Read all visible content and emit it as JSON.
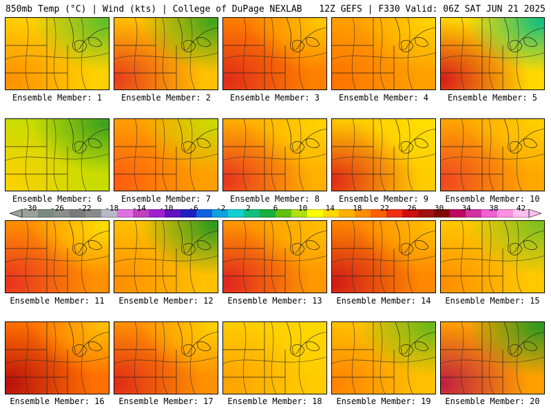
{
  "header": {
    "left": "850mb Temp (°C) | Wind (kts) | College of DuPage NEXLAB",
    "right": "12Z GEFS | F330 Valid: 06Z SAT JUN 21 2025"
  },
  "panel_label_prefix": "Ensemble Member: ",
  "members": [
    {
      "label": "Ensemble Member: 1",
      "base": "#ffd000",
      "hot_bl": "#ff8c00",
      "cool_tr": "#5cbf2a"
    },
    {
      "label": "Ensemble Member: 2",
      "base": "#ffc000",
      "hot_bl": "#e83a1c",
      "cool_tr": "#3ca51c"
    },
    {
      "label": "Ensemble Member: 3",
      "base": "#ff8000",
      "hot_bl": "#e02818",
      "cool_tr": "#ffc800"
    },
    {
      "label": "Ensemble Member: 4",
      "base": "#ffa000",
      "hot_bl": "#ff7000",
      "cool_tr": "#ffd400"
    },
    {
      "label": "Ensemble Member: 5",
      "base": "#ffd800",
      "hot_bl": "#d81818",
      "cool_tr": "#10c080"
    },
    {
      "label": "Ensemble Member: 6",
      "base": "#c8dc00",
      "hot_bl": "#ffd000",
      "cool_tr": "#3aa020"
    },
    {
      "label": "Ensemble Member: 7",
      "base": "#ffa000",
      "hot_bl": "#ff5a10",
      "cool_tr": "#c8dc00"
    },
    {
      "label": "Ensemble Member: 8",
      "base": "#ffb000",
      "hot_bl": "#e83020",
      "cool_tr": "#ffd400"
    },
    {
      "label": "Ensemble Member: 9",
      "base": "#ffcc00",
      "hot_bl": "#e02818",
      "cool_tr": "#ffe000"
    },
    {
      "label": "Ensemble Member: 10",
      "base": "#ffa800",
      "hot_bl": "#ee4420",
      "cool_tr": "#ffd000"
    },
    {
      "label": "Ensemble Member: 11",
      "base": "#ff9000",
      "hot_bl": "#e83020",
      "cool_tr": "#ffe000"
    },
    {
      "label": "Ensemble Member: 12",
      "base": "#ffc000",
      "hot_bl": "#ff8c00",
      "cool_tr": "#2a9a20"
    },
    {
      "label": "Ensemble Member: 13",
      "base": "#ff9800",
      "hot_bl": "#e02020",
      "cool_tr": "#ffc000"
    },
    {
      "label": "Ensemble Member: 14",
      "base": "#ff8800",
      "hot_bl": "#d01818",
      "cool_tr": "#ffc000"
    },
    {
      "label": "Ensemble Member: 15",
      "base": "#ffc800",
      "hot_bl": "#ff8c00",
      "cool_tr": "#7cc020"
    },
    {
      "label": "Ensemble Member: 16",
      "base": "#ff7000",
      "hot_bl": "#b80c0c",
      "cool_tr": "#ffc000"
    },
    {
      "label": "Ensemble Member: 17",
      "base": "#ff9000",
      "hot_bl": "#e02818",
      "cool_tr": "#ffd000"
    },
    {
      "label": "Ensemble Member: 18",
      "base": "#ffcc00",
      "hot_bl": "#ffa000",
      "cool_tr": "#ffd800"
    },
    {
      "label": "Ensemble Member: 19",
      "base": "#ffc000",
      "hot_bl": "#ff8000",
      "cool_tr": "#6ab818"
    },
    {
      "label": "Ensemble Member: 20",
      "base": "#ffa000",
      "hot_bl": "#c01c40",
      "cool_tr": "#2a9a20"
    }
  ],
  "colorbar": {
    "tick_labels": [
      "-30",
      "-26",
      "-22",
      "-18",
      "-14",
      "-10",
      "-6",
      "-2",
      "2",
      "6",
      "10",
      "14",
      "18",
      "22",
      "26",
      "30",
      "34",
      "38",
      "42"
    ],
    "colors": [
      "#9aa09a",
      "#7a8a80",
      "#8a8f8a",
      "#7a7a7a",
      "#8a8a8a",
      "#b8b8c8",
      "#e070e0",
      "#c040c0",
      "#a020d0",
      "#6010c0",
      "#2020c0",
      "#1060e0",
      "#10a0e0",
      "#10d0d0",
      "#10c080",
      "#18b040",
      "#60c010",
      "#b0e010",
      "#ffff00",
      "#ffd800",
      "#ffb000",
      "#ff8c00",
      "#ff6000",
      "#f03010",
      "#d01010",
      "#a01010",
      "#800808",
      "#c00860",
      "#d030a0",
      "#f060d0",
      "#ff90e0",
      "#ffc0f0"
    ]
  }
}
